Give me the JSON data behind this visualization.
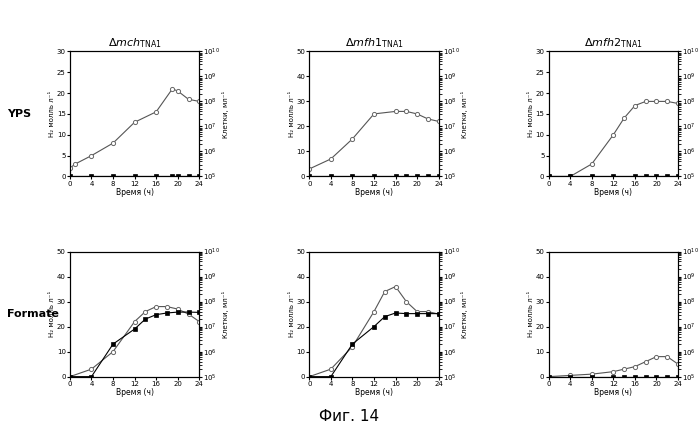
{
  "row_labels": [
    "YPS",
    "Formate"
  ],
  "xlabel": "Время (ч)",
  "ylabel_left": "H₂ молль л⁻¹",
  "ylabel_right": "Клетки, мл⁻¹",
  "fig_title": "Фиг. 14",
  "plots": {
    "YPS_mch": {
      "H2_x": [
        0,
        1,
        4,
        8,
        12,
        16,
        19,
        20,
        22,
        24
      ],
      "H2_y": [
        2,
        3,
        5,
        8,
        13,
        15.5,
        21,
        20.5,
        18.5,
        18
      ],
      "cells_x": [
        0,
        4,
        8,
        12,
        16,
        19,
        20,
        22,
        24
      ],
      "cells_y": [
        100000.0,
        100000.0,
        100000.0,
        100000.0,
        100000.0,
        100000.0,
        100000.0,
        100000.0,
        100000.0
      ],
      "ylim_left": [
        0,
        30
      ],
      "ylim_right": [
        100000.0,
        10000000000.0
      ],
      "yticks_left": [
        0,
        5,
        10,
        15,
        20,
        25,
        30
      ]
    },
    "YPS_mfh1": {
      "H2_x": [
        0,
        4,
        8,
        12,
        16,
        18,
        20,
        22,
        24
      ],
      "H2_y": [
        3,
        7,
        15,
        25,
        26,
        26,
        25,
        23,
        22
      ],
      "cells_x": [
        0,
        4,
        8,
        12,
        16,
        18,
        20,
        22,
        24
      ],
      "cells_y": [
        100000.0,
        100000.0,
        100000.0,
        100000.0,
        100000.0,
        100000.0,
        100000.0,
        100000.0,
        100000.0
      ],
      "ylim_left": [
        0,
        50
      ],
      "ylim_right": [
        100000.0,
        10000000000.0
      ],
      "yticks_left": [
        0,
        10,
        20,
        30,
        40,
        50
      ]
    },
    "YPS_mfh2": {
      "H2_x": [
        0,
        4,
        8,
        12,
        14,
        16,
        18,
        20,
        22,
        24
      ],
      "H2_y": [
        0,
        0,
        3,
        10,
        14,
        17,
        18,
        18,
        18,
        17.5
      ],
      "cells_x": [
        0,
        4,
        8,
        12,
        16,
        18,
        20,
        22,
        24
      ],
      "cells_y": [
        100000.0,
        100000.0,
        100000.0,
        100000.0,
        100000.0,
        100000.0,
        100000.0,
        100000.0,
        100000.0
      ],
      "ylim_left": [
        0,
        30
      ],
      "ylim_right": [
        100000.0,
        10000000000.0
      ],
      "yticks_left": [
        0,
        5,
        10,
        15,
        20,
        25,
        30
      ]
    },
    "Formate_mch": {
      "H2_x": [
        0,
        4,
        8,
        12,
        14,
        16,
        18,
        20,
        22,
        24
      ],
      "H2_y": [
        0,
        3,
        10,
        22,
        26,
        28,
        28,
        27,
        25,
        22
      ],
      "cells_x": [
        0,
        4,
        8,
        12,
        14,
        16,
        18,
        20,
        22,
        24
      ],
      "cells_y": [
        100000.0,
        100000.0,
        2000000.0,
        8000000.0,
        20000000.0,
        30000000.0,
        35000000.0,
        38000000.0,
        38000000.0,
        37000000.0
      ],
      "ylim_left": [
        0,
        50
      ],
      "ylim_right": [
        100000.0,
        10000000000.0
      ],
      "yticks_left": [
        0,
        10,
        20,
        30,
        40,
        50
      ]
    },
    "Formate_mfh1": {
      "H2_x": [
        0,
        4,
        8,
        12,
        14,
        16,
        18,
        20,
        22,
        24
      ],
      "H2_y": [
        0,
        3,
        12,
        26,
        34,
        36,
        30,
        26,
        26,
        25
      ],
      "cells_x": [
        0,
        4,
        8,
        12,
        14,
        16,
        18,
        20,
        22,
        24
      ],
      "cells_y": [
        100000.0,
        100000.0,
        2000000.0,
        10000000.0,
        25000000.0,
        35000000.0,
        33000000.0,
        33000000.0,
        33000000.0,
        33000000.0
      ],
      "ylim_left": [
        0,
        50
      ],
      "ylim_right": [
        100000.0,
        10000000000.0
      ],
      "yticks_left": [
        0,
        10,
        20,
        30,
        40,
        50
      ]
    },
    "Formate_mfh2": {
      "H2_x": [
        0,
        4,
        8,
        12,
        14,
        16,
        18,
        20,
        22,
        24
      ],
      "H2_y": [
        0,
        0.5,
        1,
        2,
        3,
        4,
        6,
        8,
        8,
        5
      ],
      "cells_x": [
        0,
        4,
        8,
        12,
        14,
        16,
        18,
        20,
        22,
        24
      ],
      "cells_y": [
        100000.0,
        100000.0,
        100000.0,
        100000.0,
        100000.0,
        100000.0,
        100000.0,
        100000.0,
        100000.0,
        100000.0
      ],
      "ylim_left": [
        0,
        50
      ],
      "ylim_right": [
        100000.0,
        10000000000.0
      ],
      "yticks_left": [
        0,
        10,
        20,
        30,
        40,
        50
      ]
    }
  },
  "xticks": [
    0,
    4,
    8,
    12,
    16,
    20,
    24
  ],
  "background_color": "#ffffff",
  "line_color_H2": "#555555",
  "line_color_cells": "#000000",
  "marker_H2": "o",
  "marker_cells": "s",
  "col_titles_fmt": [
    "$\\it{\\Delta mch}$$_{\\mathrm{TNA1}}$",
    "$\\it{\\Delta mfh1}$$_{\\mathrm{TNA1}}$",
    "$\\it{\\Delta mfh2}$$_{\\mathrm{TNA1}}$"
  ]
}
